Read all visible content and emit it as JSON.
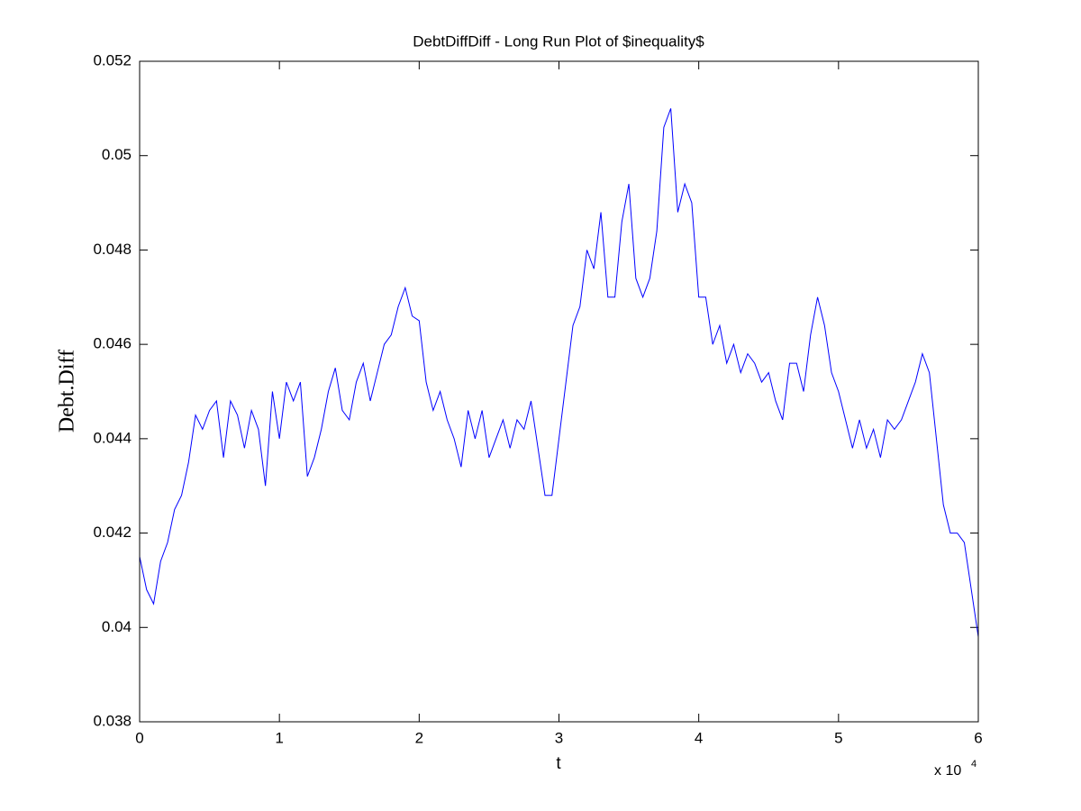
{
  "chart_data": {
    "type": "line",
    "title": "DebtDiffDiff - Long Run Plot of $inequality$",
    "x_label": "t",
    "y_label": "Debt.Diff",
    "x_multiplier": {
      "base": "x 10",
      "exponent": "4"
    },
    "x": [
      0,
      500,
      1000,
      1500,
      2000,
      2500,
      3000,
      3500,
      4000,
      4500,
      5000,
      5500,
      6000,
      6500,
      7000,
      7500,
      8000,
      8500,
      9000,
      9500,
      10000,
      10500,
      11000,
      11500,
      12000,
      12500,
      13000,
      13500,
      14000,
      14500,
      15000,
      15500,
      16000,
      16500,
      17000,
      17500,
      18000,
      18500,
      19000,
      19500,
      20000,
      20500,
      21000,
      21500,
      22000,
      22500,
      23000,
      23500,
      24000,
      24500,
      25000,
      25500,
      26000,
      26500,
      27000,
      27500,
      28000,
      28500,
      29000,
      29500,
      30000,
      30500,
      31000,
      31500,
      32000,
      32500,
      33000,
      33500,
      34000,
      34500,
      35000,
      35500,
      36000,
      36500,
      37000,
      37500,
      38000,
      38500,
      39000,
      39500,
      40000,
      40500,
      41000,
      41500,
      42000,
      42500,
      43000,
      43500,
      44000,
      44500,
      45000,
      45500,
      46000,
      46500,
      47000,
      47500,
      48000,
      48500,
      49000,
      49500,
      50000,
      50500,
      51000,
      51500,
      52000,
      52500,
      53000,
      53500,
      54000,
      54500,
      55000,
      55500,
      56000,
      56500,
      57000,
      57500,
      58000,
      58500,
      59000,
      59500,
      60000
    ],
    "series": [
      {
        "name": "DebtDiff",
        "color": "#0000ff",
        "values": [
          0.0415,
          0.0408,
          0.0405,
          0.0414,
          0.0418,
          0.0425,
          0.0428,
          0.0435,
          0.0445,
          0.0442,
          0.0446,
          0.0448,
          0.0436,
          0.0448,
          0.0445,
          0.0438,
          0.0446,
          0.0442,
          0.043,
          0.045,
          0.044,
          0.0452,
          0.0448,
          0.0452,
          0.0432,
          0.0436,
          0.0442,
          0.045,
          0.0455,
          0.0446,
          0.0444,
          0.0452,
          0.0456,
          0.0448,
          0.0454,
          0.046,
          0.0462,
          0.0468,
          0.0472,
          0.0466,
          0.0465,
          0.0452,
          0.0446,
          0.045,
          0.0444,
          0.044,
          0.0434,
          0.0446,
          0.044,
          0.0446,
          0.0436,
          0.044,
          0.0444,
          0.0438,
          0.0444,
          0.0442,
          0.0448,
          0.0438,
          0.0428,
          0.0428,
          0.044,
          0.0452,
          0.0464,
          0.0468,
          0.048,
          0.0476,
          0.0488,
          0.047,
          0.047,
          0.0486,
          0.0494,
          0.0474,
          0.047,
          0.0474,
          0.0484,
          0.0506,
          0.051,
          0.0488,
          0.0494,
          0.049,
          0.047,
          0.047,
          0.046,
          0.0464,
          0.0456,
          0.046,
          0.0454,
          0.0458,
          0.0456,
          0.0452,
          0.0454,
          0.0448,
          0.0444,
          0.0456,
          0.0456,
          0.045,
          0.0462,
          0.047,
          0.0464,
          0.0454,
          0.045,
          0.0444,
          0.0438,
          0.0444,
          0.0438,
          0.0442,
          0.0436,
          0.0444,
          0.0442,
          0.0444,
          0.0448,
          0.0452,
          0.0458,
          0.0454,
          0.044,
          0.0426,
          0.042,
          0.042,
          0.0418,
          0.0408,
          0.0398
        ]
      }
    ],
    "xlim": [
      0,
      60000
    ],
    "ylim": [
      0.038,
      0.052
    ],
    "xticks": [
      {
        "value": 0,
        "label": "0"
      },
      {
        "value": 10000,
        "label": "1"
      },
      {
        "value": 20000,
        "label": "2"
      },
      {
        "value": 30000,
        "label": "3"
      },
      {
        "value": 40000,
        "label": "4"
      },
      {
        "value": 50000,
        "label": "5"
      },
      {
        "value": 60000,
        "label": "6"
      }
    ],
    "yticks": [
      0.038,
      0.04,
      0.042,
      0.044,
      0.046,
      0.048,
      0.05,
      0.052
    ],
    "grid": false
  }
}
